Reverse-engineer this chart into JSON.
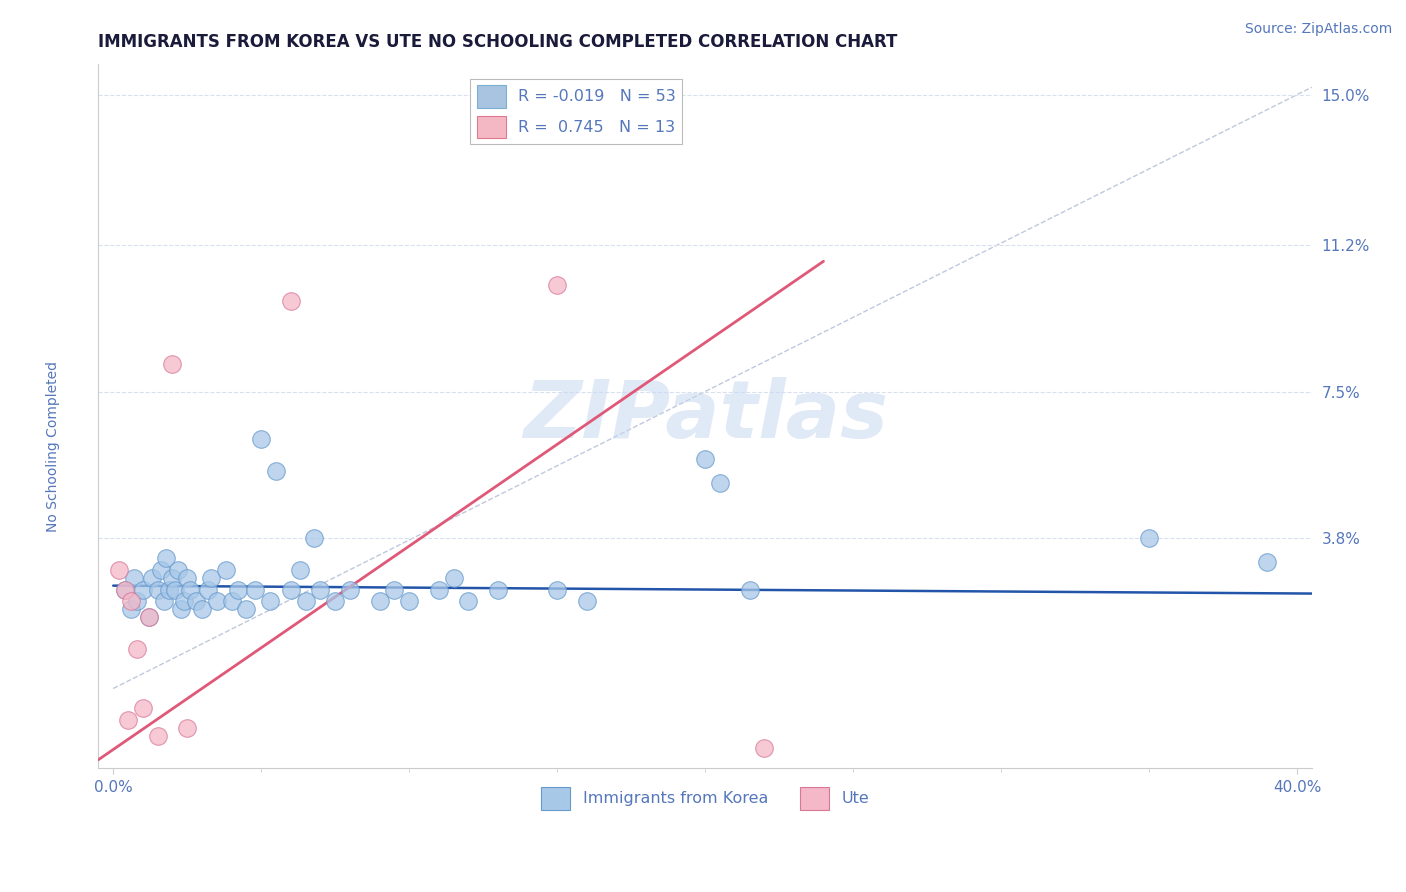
{
  "title": "IMMIGRANTS FROM KOREA VS UTE NO SCHOOLING COMPLETED CORRELATION CHART",
  "source_text": "Source: ZipAtlas.com",
  "ylabel": "No Schooling Completed",
  "xlim": [
    -0.005,
    0.405
  ],
  "ylim": [
    -0.02,
    0.158
  ],
  "xtick_labels": [
    "0.0%",
    "40.0%"
  ],
  "xtick_vals": [
    0.0,
    0.4
  ],
  "ytick_vals": [
    0.038,
    0.075,
    0.112,
    0.15
  ],
  "ytick_labels": [
    "3.8%",
    "7.5%",
    "11.2%",
    "15.0%"
  ],
  "legend_entries": [
    {
      "label": "R = -0.019   N = 53",
      "color": "#a8c4e0",
      "edge": "#7bafd4"
    },
    {
      "label": "R =  0.745   N = 13",
      "color": "#f4b8c4",
      "edge": "#e07890"
    }
  ],
  "blue_scatter_points": [
    [
      0.004,
      0.025
    ],
    [
      0.006,
      0.02
    ],
    [
      0.007,
      0.028
    ],
    [
      0.008,
      0.022
    ],
    [
      0.01,
      0.025
    ],
    [
      0.012,
      0.018
    ],
    [
      0.013,
      0.028
    ],
    [
      0.015,
      0.025
    ],
    [
      0.016,
      0.03
    ],
    [
      0.017,
      0.022
    ],
    [
      0.018,
      0.033
    ],
    [
      0.019,
      0.025
    ],
    [
      0.02,
      0.028
    ],
    [
      0.021,
      0.025
    ],
    [
      0.022,
      0.03
    ],
    [
      0.023,
      0.02
    ],
    [
      0.024,
      0.022
    ],
    [
      0.025,
      0.028
    ],
    [
      0.026,
      0.025
    ],
    [
      0.028,
      0.022
    ],
    [
      0.03,
      0.02
    ],
    [
      0.032,
      0.025
    ],
    [
      0.033,
      0.028
    ],
    [
      0.035,
      0.022
    ],
    [
      0.038,
      0.03
    ],
    [
      0.04,
      0.022
    ],
    [
      0.042,
      0.025
    ],
    [
      0.045,
      0.02
    ],
    [
      0.048,
      0.025
    ],
    [
      0.05,
      0.063
    ],
    [
      0.053,
      0.022
    ],
    [
      0.055,
      0.055
    ],
    [
      0.06,
      0.025
    ],
    [
      0.063,
      0.03
    ],
    [
      0.065,
      0.022
    ],
    [
      0.068,
      0.038
    ],
    [
      0.07,
      0.025
    ],
    [
      0.075,
      0.022
    ],
    [
      0.08,
      0.025
    ],
    [
      0.09,
      0.022
    ],
    [
      0.095,
      0.025
    ],
    [
      0.1,
      0.022
    ],
    [
      0.11,
      0.025
    ],
    [
      0.115,
      0.028
    ],
    [
      0.12,
      0.022
    ],
    [
      0.13,
      0.025
    ],
    [
      0.15,
      0.025
    ],
    [
      0.16,
      0.022
    ],
    [
      0.2,
      0.058
    ],
    [
      0.205,
      0.052
    ],
    [
      0.215,
      0.025
    ],
    [
      0.35,
      0.038
    ],
    [
      0.39,
      0.032
    ]
  ],
  "pink_scatter_points": [
    [
      0.002,
      0.03
    ],
    [
      0.004,
      0.025
    ],
    [
      0.005,
      -0.008
    ],
    [
      0.006,
      0.022
    ],
    [
      0.008,
      0.01
    ],
    [
      0.01,
      -0.005
    ],
    [
      0.012,
      0.018
    ],
    [
      0.015,
      -0.012
    ],
    [
      0.02,
      0.082
    ],
    [
      0.025,
      -0.01
    ],
    [
      0.06,
      0.098
    ],
    [
      0.15,
      0.102
    ],
    [
      0.22,
      -0.015
    ]
  ],
  "blue_trend": {
    "color": "#2255aa",
    "linewidth": 1.8,
    "x": [
      0.0,
      0.405
    ],
    "y": [
      0.026,
      0.024
    ]
  },
  "pink_trend": {
    "color": "#e05878",
    "linewidth": 2.0,
    "x": [
      -0.005,
      0.24
    ],
    "y": [
      -0.018,
      0.108
    ]
  },
  "ref_line": {
    "color": "#c0c8dc",
    "linestyle": "--",
    "linewidth": 1.0,
    "x": [
      0.0,
      0.405
    ],
    "y": [
      0.0,
      0.152
    ]
  },
  "watermark": "ZIPatlas",
  "watermark_color": "#c8d8f0",
  "background_color": "#ffffff",
  "title_color": "#1a1a3a",
  "axis_color": "#5577bb",
  "grid_color": "#d8e0f0",
  "title_fontsize": 12,
  "axis_label_fontsize": 10,
  "tick_fontsize": 11,
  "source_fontsize": 10
}
